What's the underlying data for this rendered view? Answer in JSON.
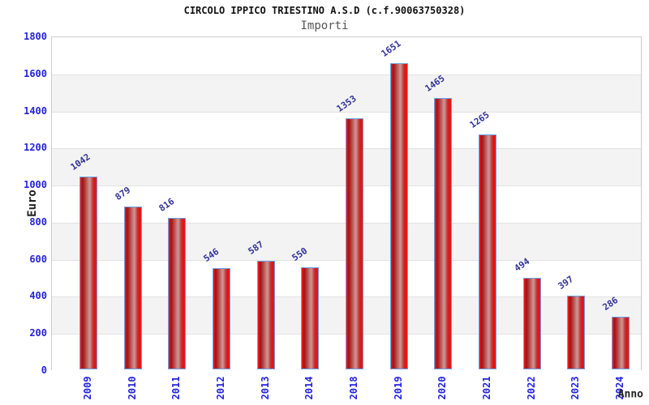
{
  "header": {
    "title": "CIRCOLO IPPICO TRIESTINO A.S.D (c.f.90063750328)",
    "subtitle": "Importi"
  },
  "chart_data": {
    "type": "bar",
    "title": "CIRCOLO IPPICO TRIESTINO A.S.D (c.f.90063750328)",
    "subtitle": "Importi",
    "categories": [
      "2009",
      "2010",
      "2011",
      "2012",
      "2013",
      "2014",
      "2018",
      "2019",
      "2020",
      "2021",
      "2022",
      "2023",
      "2024"
    ],
    "values": [
      1042,
      879,
      816,
      546,
      587,
      550,
      1353,
      1651,
      1465,
      1265,
      494,
      397,
      286
    ],
    "xlabel": "Anno",
    "ylabel": "Euro",
    "ylim": [
      0,
      1800
    ],
    "ytick_step": 200,
    "yticks": [
      0,
      200,
      400,
      600,
      800,
      1000,
      1200,
      1400,
      1600,
      1800
    ],
    "grid": "horizontal-bands",
    "legend": "none",
    "colors": {
      "bar_fill": "#e81414",
      "bar_highlight": "#cf9393",
      "bar_border": "#6ba1e8",
      "axis_tick_label": "#2323dd",
      "value_label": "#333399",
      "band_gray": "#f3f3f3",
      "gridline": "#e2e2e2",
      "plot_border": "#cccccc",
      "title_color": "#111111",
      "subtitle_color": "#555555"
    }
  }
}
